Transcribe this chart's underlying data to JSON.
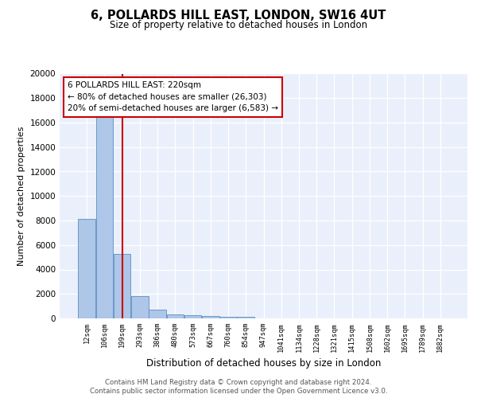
{
  "title": "6, POLLARDS HILL EAST, LONDON, SW16 4UT",
  "subtitle": "Size of property relative to detached houses in London",
  "xlabel": "Distribution of detached houses by size in London",
  "ylabel": "Number of detached properties",
  "categories": [
    "12sqm",
    "106sqm",
    "199sqm",
    "293sqm",
    "386sqm",
    "480sqm",
    "573sqm",
    "667sqm",
    "760sqm",
    "854sqm",
    "947sqm",
    "1041sqm",
    "1134sqm",
    "1228sqm",
    "1321sqm",
    "1415sqm",
    "1508sqm",
    "1602sqm",
    "1695sqm",
    "1789sqm",
    "1882sqm"
  ],
  "values": [
    8100,
    16500,
    5300,
    1850,
    700,
    320,
    230,
    200,
    160,
    130,
    0,
    0,
    0,
    0,
    0,
    0,
    0,
    0,
    0,
    0,
    0
  ],
  "bar_color": "#aec6e8",
  "bar_edge_color": "#5a8fc0",
  "background_color": "#eaf0fb",
  "red_line_x": 2,
  "annotation_line1": "6 POLLARDS HILL EAST: 220sqm",
  "annotation_line2": "← 80% of detached houses are smaller (26,303)",
  "annotation_line3": "20% of semi-detached houses are larger (6,583) →",
  "annotation_box_color": "#ffffff",
  "annotation_box_edge": "#cc0000",
  "red_line_color": "#cc0000",
  "footer1": "Contains HM Land Registry data © Crown copyright and database right 2024.",
  "footer2": "Contains public sector information licensed under the Open Government Licence v3.0.",
  "ylim": [
    0,
    20000
  ],
  "yticks": [
    0,
    2000,
    4000,
    6000,
    8000,
    10000,
    12000,
    14000,
    16000,
    18000,
    20000
  ]
}
